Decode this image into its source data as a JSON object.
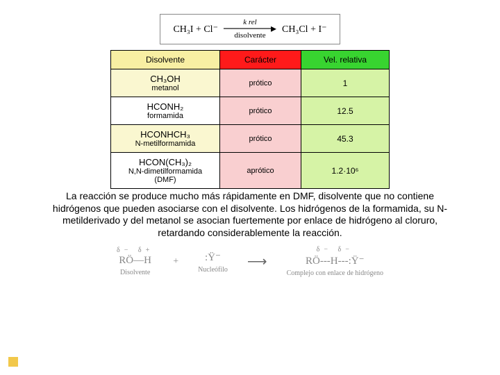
{
  "equation": {
    "lhs": "CH₃I  +  Cl⁻",
    "top": "k rel",
    "bottom": "disolvente",
    "rhs": "CH₃Cl  +  I⁻"
  },
  "table": {
    "headers": [
      "Disolvente",
      "Carácter",
      "Vel. relativa"
    ],
    "header_bg": [
      "#f8efa3",
      "#ff1a1a",
      "#38d430"
    ],
    "rows": [
      {
        "formula": "CH₃OH",
        "name": "metanol",
        "character": "prótico",
        "rate": "1",
        "bg": [
          "#faf7d0",
          "#f9cfd0",
          "#d6f3a6"
        ]
      },
      {
        "formula": "HCONH₂",
        "name": "formamida",
        "character": "prótico",
        "rate": "12.5",
        "bg": [
          "#ffffff",
          "#f9cfd0",
          "#d6f3a6"
        ]
      },
      {
        "formula": "HCONHCH₃",
        "name": "N-metilformamida",
        "character": "prótico",
        "rate": "45.3",
        "bg": [
          "#faf7d0",
          "#f9cfd0",
          "#d6f3a6"
        ]
      },
      {
        "formula": "HCON(CH₃)₂",
        "name": "N,N-dimetilformamida (DMF)",
        "character": "aprótico",
        "rate": "1.2·10⁶",
        "bg": [
          "#ffffff",
          "#f9cfd0",
          "#d6f3a6"
        ]
      }
    ]
  },
  "paragraph": "La reacción se produce mucho más rápidamente en DMF, disolvente que no contiene hidrógenos que pueden asociarse con el disolvente. Los hidrógenos de la formamida, su N-metilderivado y del metanol se asocian fuertemente por enlace de hidrógeno al cloruro, retardando considerablemente la reacción.",
  "scheme": {
    "solv": {
      "top": "δ−   δ+",
      "mid": "RÖ—H",
      "label": "Disolvente"
    },
    "plus": "+",
    "nuc": {
      "top": "",
      "mid": ":Ÿ⁻",
      "label": "Nucleófilo"
    },
    "arrow": "⟶",
    "complex": {
      "top": "δ−          δ−",
      "mid": "RÖ---H---:Ÿ⁻",
      "label": "Complejo con enlace de hidrógeno"
    }
  }
}
